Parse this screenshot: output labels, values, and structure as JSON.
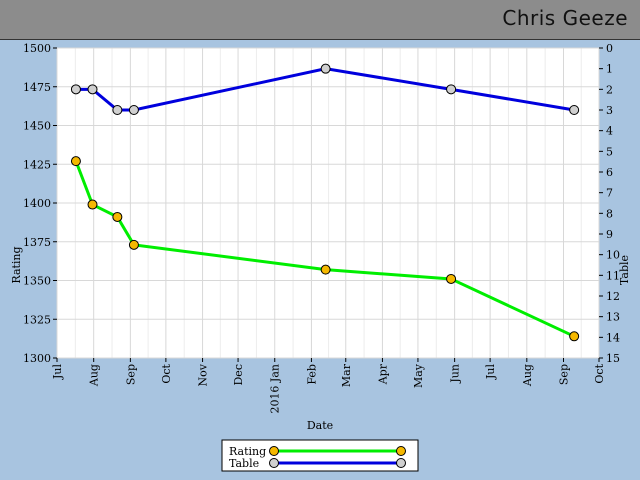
{
  "header": {
    "name": "Chris Geeze"
  },
  "chart_data": {
    "type": "line",
    "xlabel": "Date",
    "ylabel_left": "Rating",
    "ylabel_right": "Table",
    "x_ticks": [
      "Jul",
      "Aug",
      "Sep",
      "Oct",
      "Nov",
      "Dec",
      "2016 Jan",
      "Feb",
      "Mar",
      "Apr",
      "May",
      "Jun",
      "Jul",
      "Aug",
      "Sep",
      "Oct"
    ],
    "x_tick_dates": [
      "2015-07-01",
      "2015-08-01",
      "2015-09-01",
      "2015-10-01",
      "2015-11-01",
      "2015-12-01",
      "2016-01-01",
      "2016-02-01",
      "2016-03-01",
      "2016-04-01",
      "2016-05-01",
      "2016-06-01",
      "2016-07-01",
      "2016-08-01",
      "2016-09-01",
      "2016-10-01"
    ],
    "xlim": [
      "2015-07-01",
      "2016-10-01"
    ],
    "y_left": {
      "lim": [
        1300,
        1500
      ],
      "ticks": [
        1300,
        1325,
        1350,
        1375,
        1400,
        1425,
        1450,
        1475,
        1500
      ]
    },
    "y_right": {
      "lim": [
        15,
        0
      ],
      "ticks": [
        0,
        1,
        2,
        3,
        4,
        5,
        6,
        7,
        8,
        9,
        10,
        11,
        12,
        13,
        14,
        15
      ],
      "inverted": true
    },
    "grid": true,
    "legend_placement": "bottom-center",
    "series": [
      {
        "name": "Rating",
        "axis": "left",
        "color": "#00ee00",
        "marker_color": "#f5b800",
        "points": [
          {
            "x": "2015-07-17",
            "y": 1427
          },
          {
            "x": "2015-07-31",
            "y": 1399
          },
          {
            "x": "2015-08-21",
            "y": 1391
          },
          {
            "x": "2015-09-04",
            "y": 1373
          },
          {
            "x": "2016-02-13",
            "y": 1357
          },
          {
            "x": "2016-05-29",
            "y": 1351
          },
          {
            "x": "2016-09-10",
            "y": 1314
          }
        ]
      },
      {
        "name": "Table",
        "axis": "right",
        "color": "#0000dd",
        "marker_color": "#d0d0d0",
        "points": [
          {
            "x": "2015-07-17",
            "y": 2
          },
          {
            "x": "2015-07-31",
            "y": 2
          },
          {
            "x": "2015-08-21",
            "y": 3
          },
          {
            "x": "2015-09-04",
            "y": 3
          },
          {
            "x": "2016-02-13",
            "y": 1
          },
          {
            "x": "2016-05-29",
            "y": 2
          },
          {
            "x": "2016-09-10",
            "y": 3
          }
        ]
      }
    ]
  }
}
